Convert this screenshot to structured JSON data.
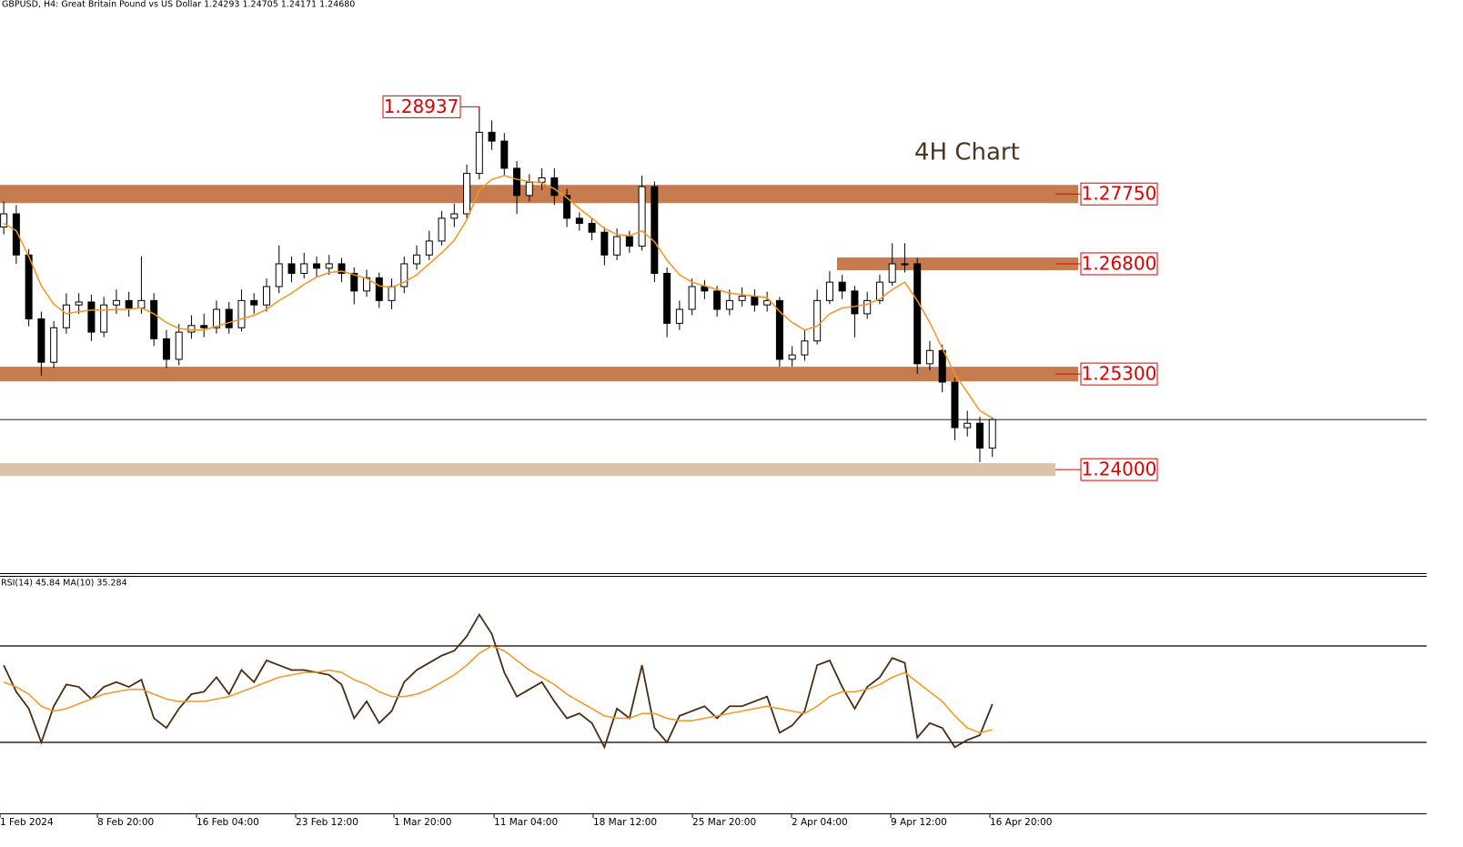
{
  "chart_data": [
    {
      "type": "candlestick",
      "title": "GBPUSD, H4:  Great Britain Pound vs US Dollar  1.24293 1.24705 1.24171 1.24680",
      "annotation": "4H Chart",
      "peak": {
        "value": 1.28937,
        "label": "1.28937"
      },
      "open": [
        1.273,
        1.2748,
        1.2692,
        1.2605,
        1.2546,
        1.2593,
        1.2624,
        1.2628,
        1.2587,
        1.2624,
        1.263,
        1.262,
        1.263,
        1.2578,
        1.255,
        1.2587,
        1.2596,
        1.2593,
        1.2618,
        1.2593,
        1.263,
        1.2624,
        1.2649,
        1.268,
        1.2667,
        1.268,
        1.2674,
        1.268,
        1.2667,
        1.2643,
        1.2661,
        1.263,
        1.2649,
        1.268,
        1.2692,
        1.2711,
        1.2742,
        1.2748,
        1.2803,
        1.2859,
        1.2847,
        1.281,
        1.2773,
        1.2791,
        1.2797,
        1.2773,
        1.2742,
        1.2735,
        1.2723,
        1.2692,
        1.2717,
        1.2704,
        1.2785,
        1.2667,
        1.2599,
        1.2618,
        1.2649,
        1.2643,
        1.2618,
        1.263,
        1.2636,
        1.2624,
        1.263,
        1.255,
        1.2556,
        1.2575,
        1.263,
        1.2655,
        1.2643,
        1.2612,
        1.263,
        1.2655,
        1.268,
        1.268,
        1.2544,
        1.2562,
        1.2519,
        1.2457,
        1.2463,
        1.24293
      ],
      "high": [
        1.2765,
        1.276,
        1.27,
        1.2615,
        1.2602,
        1.264,
        1.264,
        1.2638,
        1.2635,
        1.2645,
        1.2642,
        1.269,
        1.264,
        1.259,
        1.2598,
        1.261,
        1.2612,
        1.263,
        1.2628,
        1.2645,
        1.264,
        1.266,
        1.2705,
        1.269,
        1.2695,
        1.269,
        1.2692,
        1.2688,
        1.2675,
        1.2672,
        1.2668,
        1.266,
        1.269,
        1.2705,
        1.2725,
        1.2752,
        1.2762,
        1.2815,
        1.28937,
        1.2875,
        1.2858,
        1.282,
        1.2802,
        1.281,
        1.281,
        1.2782,
        1.275,
        1.2742,
        1.273,
        1.2728,
        1.2725,
        1.28,
        1.2792,
        1.2675,
        1.263,
        1.266,
        1.2658,
        1.265,
        1.2645,
        1.2648,
        1.2645,
        1.2642,
        1.2635,
        1.2568,
        1.259,
        1.2645,
        1.267,
        1.2665,
        1.265,
        1.2642,
        1.2665,
        1.2708,
        1.2708,
        1.2688,
        1.2575,
        1.257,
        1.2525,
        1.248,
        1.2472,
        1.24705
      ],
      "low": [
        1.272,
        1.268,
        1.2595,
        1.2528,
        1.2538,
        1.2585,
        1.2612,
        1.2575,
        1.258,
        1.2612,
        1.2608,
        1.2612,
        1.2568,
        1.2538,
        1.2542,
        1.2578,
        1.258,
        1.2585,
        1.2585,
        1.2588,
        1.2612,
        1.2615,
        1.264,
        1.2655,
        1.266,
        1.2662,
        1.2665,
        1.2655,
        1.2625,
        1.2635,
        1.262,
        1.2618,
        1.264,
        1.2672,
        1.2685,
        1.2705,
        1.273,
        1.274,
        1.2795,
        1.2835,
        1.28,
        1.2748,
        1.2765,
        1.278,
        1.276,
        1.273,
        1.2725,
        1.2712,
        1.2678,
        1.2685,
        1.2695,
        1.2698,
        1.2655,
        1.258,
        1.259,
        1.261,
        1.2632,
        1.2608,
        1.261,
        1.2622,
        1.2615,
        1.2615,
        1.254,
        1.254,
        1.2548,
        1.257,
        1.2625,
        1.2632,
        1.258,
        1.2605,
        1.2625,
        1.265,
        1.2668,
        1.253,
        1.2535,
        1.2505,
        1.244,
        1.2445,
        1.241,
        1.24171
      ],
      "close": [
        1.2748,
        1.2692,
        1.2605,
        1.2546,
        1.2593,
        1.2624,
        1.2628,
        1.2587,
        1.2624,
        1.263,
        1.262,
        1.263,
        1.2578,
        1.255,
        1.2587,
        1.2596,
        1.2593,
        1.2618,
        1.2593,
        1.263,
        1.2624,
        1.2649,
        1.268,
        1.2667,
        1.268,
        1.2674,
        1.268,
        1.2667,
        1.2643,
        1.2661,
        1.263,
        1.2649,
        1.268,
        1.2692,
        1.2711,
        1.2742,
        1.2748,
        1.2803,
        1.2859,
        1.2847,
        1.281,
        1.2773,
        1.2791,
        1.2797,
        1.2773,
        1.2742,
        1.2735,
        1.2723,
        1.2692,
        1.2717,
        1.2704,
        1.2785,
        1.2667,
        1.2599,
        1.2618,
        1.2649,
        1.2643,
        1.2618,
        1.263,
        1.2636,
        1.2624,
        1.263,
        1.255,
        1.2556,
        1.2575,
        1.263,
        1.2655,
        1.2643,
        1.2612,
        1.263,
        1.2655,
        1.268,
        1.268,
        1.2544,
        1.2562,
        1.2519,
        1.2457,
        1.2463,
        1.24293,
        1.2468
      ],
      "color": "#000000",
      "ma": {
        "color": "#f7941d",
        "values": [
          1.2735,
          1.2725,
          1.269,
          1.265,
          1.2625,
          1.2612,
          1.2615,
          1.2617,
          1.2617,
          1.2618,
          1.2618,
          1.262,
          1.2612,
          1.26,
          1.2592,
          1.259,
          1.259,
          1.2595,
          1.26,
          1.2605,
          1.261,
          1.2618,
          1.263,
          1.264,
          1.2652,
          1.2662,
          1.2668,
          1.267,
          1.2665,
          1.266,
          1.265,
          1.2648,
          1.2655,
          1.2665,
          1.268,
          1.2695,
          1.2712,
          1.274,
          1.278,
          1.2795,
          1.28,
          1.2795,
          1.2792,
          1.279,
          1.2782,
          1.277,
          1.2755,
          1.2742,
          1.2728,
          1.272,
          1.2718,
          1.2725,
          1.271,
          1.2685,
          1.2665,
          1.2655,
          1.265,
          1.2645,
          1.264,
          1.2638,
          1.2636,
          1.2634,
          1.2615,
          1.26,
          1.259,
          1.2595,
          1.2612,
          1.262,
          1.2622,
          1.2625,
          1.2632,
          1.2645,
          1.2655,
          1.263,
          1.26,
          1.2565,
          1.253,
          1.2505,
          1.248,
          1.247
        ]
      },
      "levels": [
        {
          "value": 1.2775,
          "label": "1.27750",
          "color": "#c67c4e"
        },
        {
          "value": 1.268,
          "label": "1.26800",
          "color": "#c67c4e"
        },
        {
          "value": 1.253,
          "label": "1.25300",
          "color": "#c67c4e"
        },
        {
          "value": 1.24,
          "label": "1.24000",
          "color": "#dcc3a8"
        }
      ],
      "xlim": [
        -0.3,
        113.7
      ],
      "xticks": [
        {
          "value": -0.3,
          "label": "1 Feb 2024"
        },
        {
          "value": 7.48,
          "label": "8 Feb 20:00"
        },
        {
          "value": 15.4,
          "label": "16 Feb 04:00"
        },
        {
          "value": 23.33,
          "label": "23 Feb 12:00"
        },
        {
          "value": 31.18,
          "label": "1 Mar 20:00"
        },
        {
          "value": 39.18,
          "label": "11 Mar 04:00"
        },
        {
          "value": 47.1,
          "label": "18 Mar 12:00"
        },
        {
          "value": 55.03,
          "label": "25 Mar 20:00"
        },
        {
          "value": 62.95,
          "label": "2 Apr 04:00"
        },
        {
          "value": 70.88,
          "label": "9 Apr 12:00"
        },
        {
          "value": 78.8,
          "label": "16 Apr 20:00"
        }
      ],
      "ylim": [
        1.2259,
        1.3039
      ]
    },
    {
      "type": "line",
      "title": "RSI(14) 45.84 MA(10) 35.284",
      "series": [
        {
          "color": "#4a2c14",
          "values": [
            62,
            51,
            44,
            30,
            45,
            54,
            53,
            48,
            53,
            55,
            53,
            56,
            40,
            36,
            44,
            50,
            51,
            57,
            50,
            60,
            55,
            64,
            62,
            60,
            60,
            59,
            58,
            54,
            40,
            47,
            38,
            43,
            55,
            60,
            63,
            66,
            68,
            74,
            83,
            75,
            59,
            49,
            52,
            55,
            47,
            40,
            42,
            38,
            28,
            44,
            40,
            62,
            36,
            30,
            41,
            43,
            45,
            40,
            45,
            45,
            47,
            49,
            34,
            37,
            43,
            62,
            64,
            53,
            44,
            53,
            57,
            65,
            63,
            32,
            38,
            36,
            28,
            31,
            33,
            45.84
          ]
        },
        {
          "color": "#f7941d",
          "values": [
            55,
            53,
            50,
            45,
            43,
            44,
            46,
            48,
            50,
            51,
            52,
            52,
            50,
            48,
            47,
            47,
            47,
            48,
            49,
            51,
            53,
            55,
            57,
            58,
            59,
            59,
            60,
            59,
            56,
            54,
            51,
            49,
            49,
            50,
            52,
            55,
            58,
            62,
            67,
            70,
            68,
            64,
            60,
            57,
            54,
            50,
            47,
            44,
            41,
            40,
            40,
            42,
            42,
            40,
            39,
            39,
            40,
            41,
            42,
            43,
            44,
            45,
            44,
            43,
            42,
            45,
            49,
            51,
            51,
            52,
            54,
            57,
            59,
            55,
            51,
            47,
            41,
            36,
            34,
            35.284
          ]
        }
      ],
      "levels": [
        70,
        30
      ],
      "ylim": [
        0,
        100
      ]
    }
  ]
}
